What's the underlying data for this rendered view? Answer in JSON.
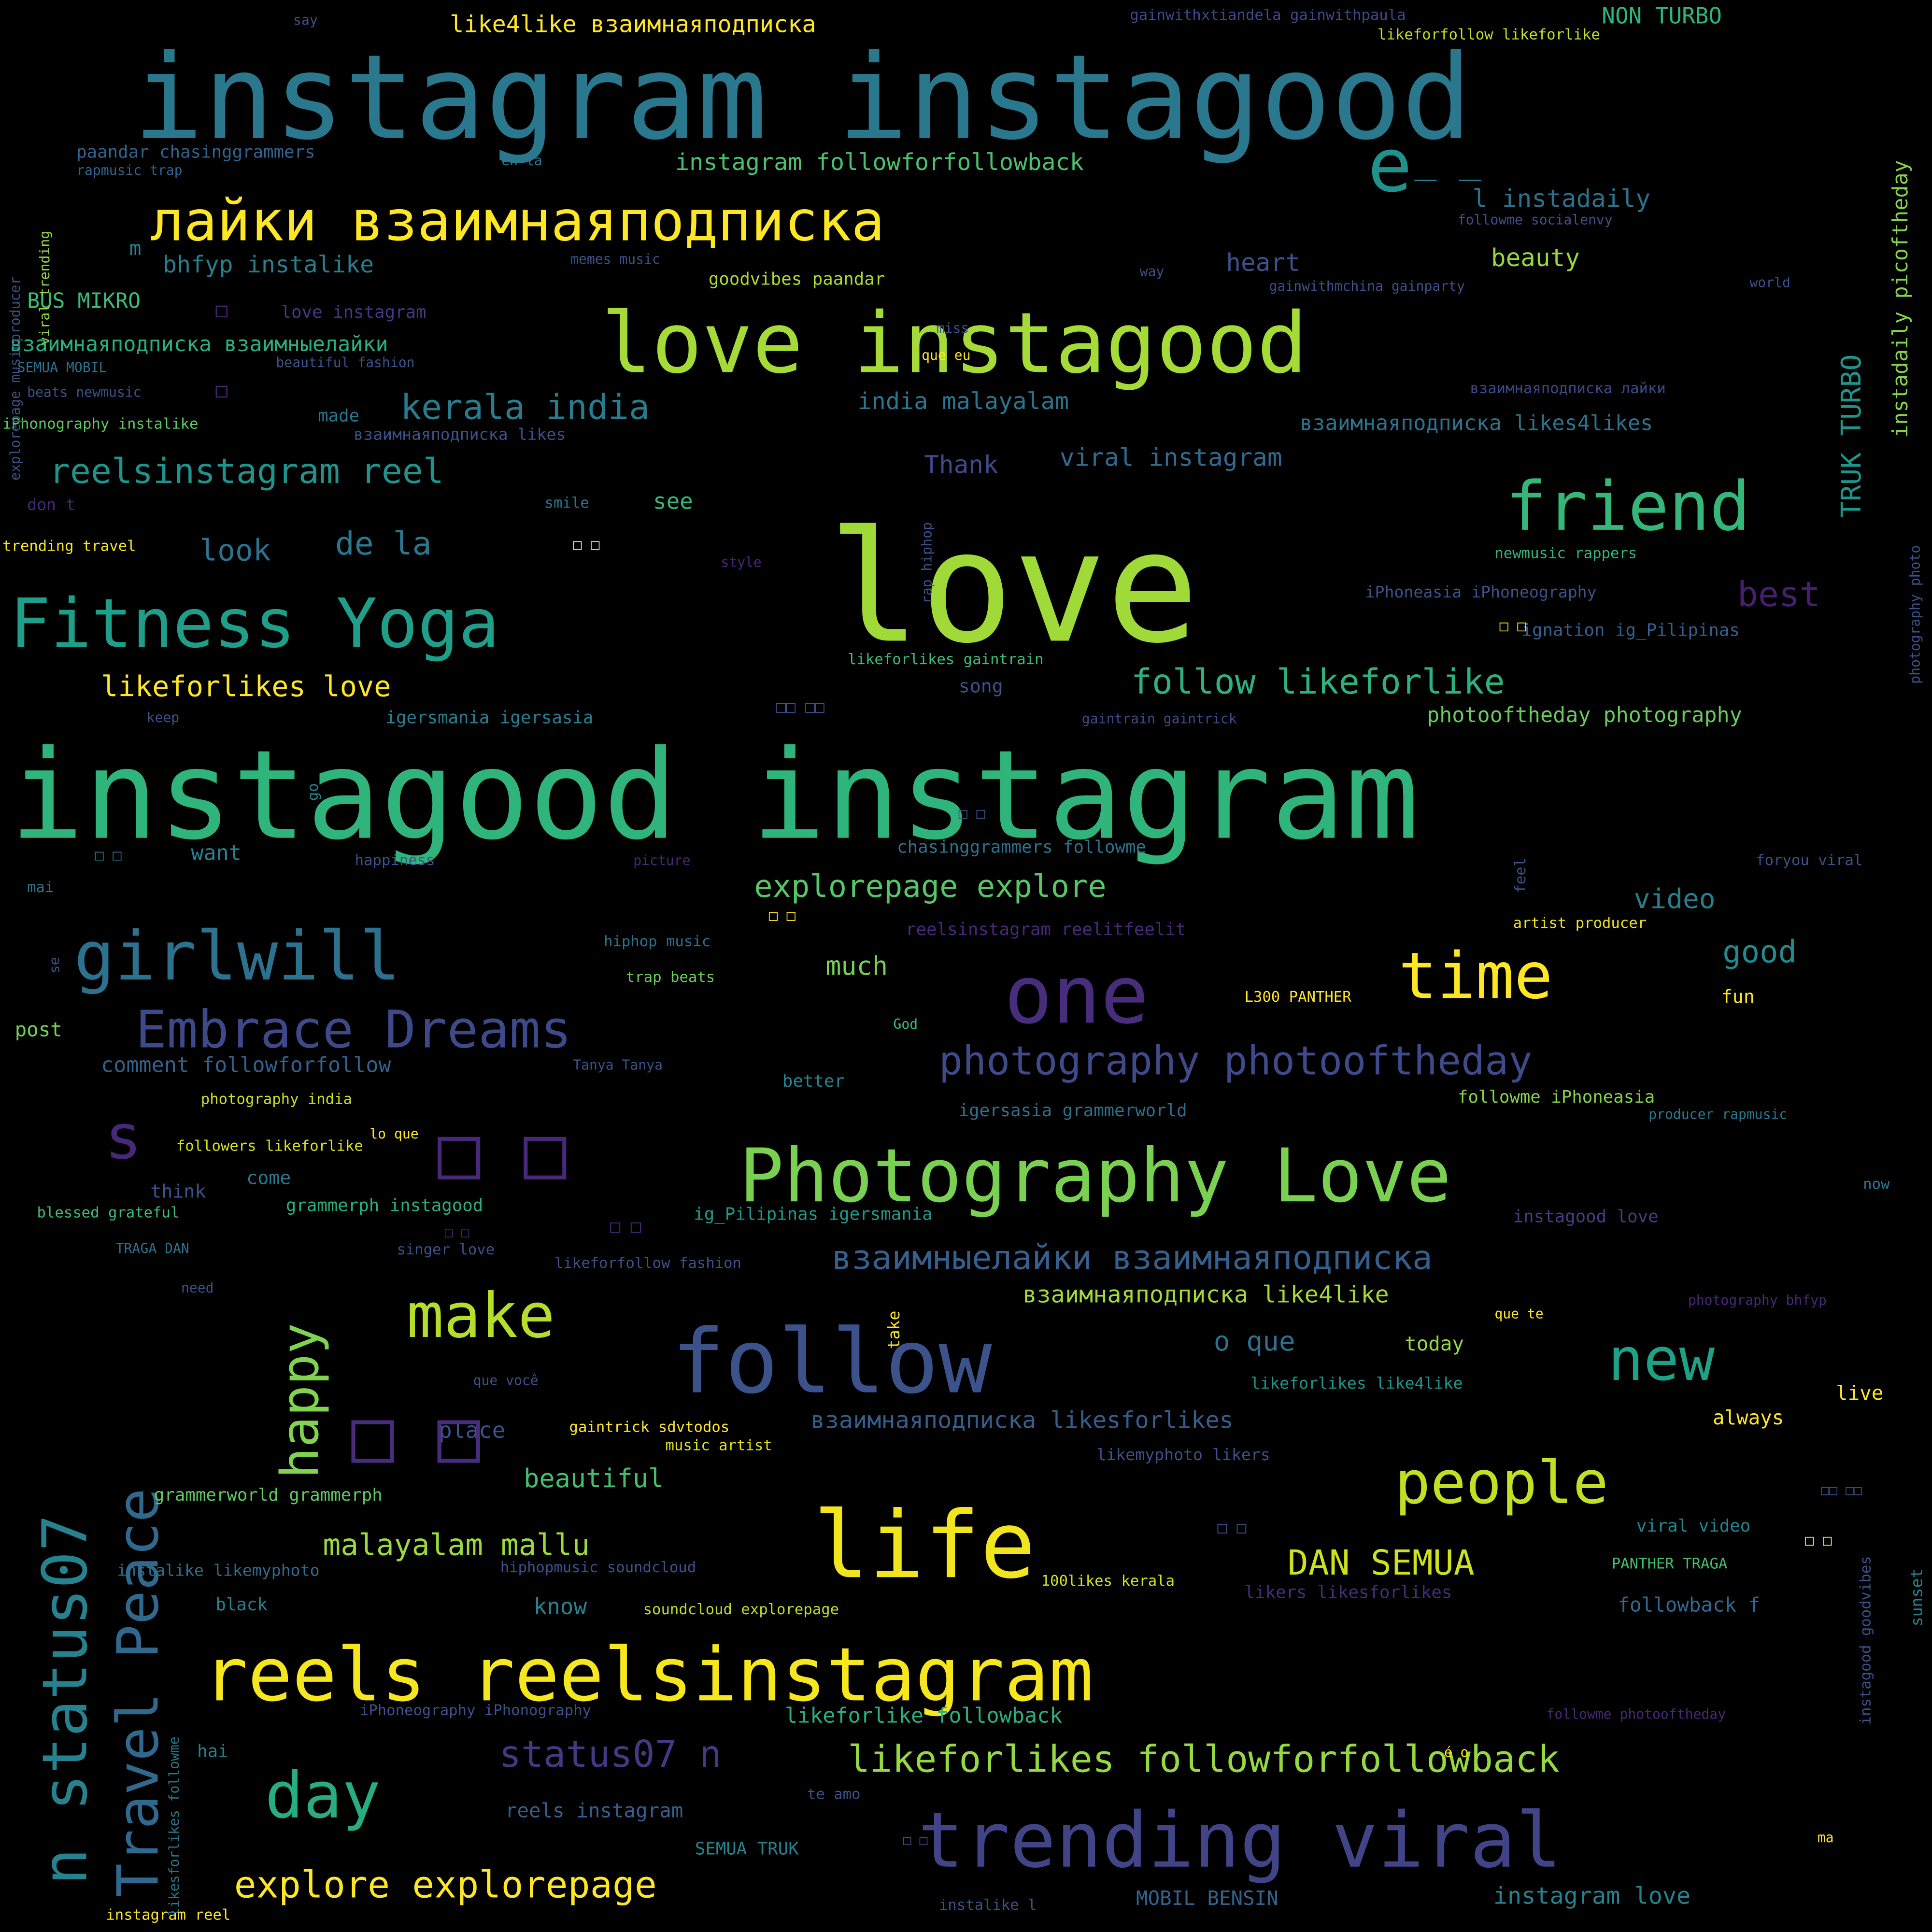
{
  "background": "#000000",
  "palette": [
    "#440154",
    "#3b528b",
    "#21918c",
    "#5ec962",
    "#fde725"
  ],
  "words": [
    {
      "text": "love",
      "size": 125,
      "color": "#a0da39"
    },
    {
      "text": "instagood instagram",
      "size": 100,
      "color": "#2fb47c"
    },
    {
      "text": "instagram instagood",
      "size": 95,
      "color": "#2a788e"
    },
    {
      "text": "love instagood",
      "size": 68,
      "color": "#a5db36"
    },
    {
      "text": "reels reelsinstagram",
      "size": 60,
      "color": "#f5e61e"
    },
    {
      "text": "life",
      "size": 75,
      "color": "#f1e51d"
    },
    {
      "text": "follow",
      "size": 72,
      "color": "#3b528b"
    },
    {
      "text": "Photography Love",
      "size": 60,
      "color": "#7ad151"
    },
    {
      "text": "trending viral",
      "size": 62,
      "color": "#414487"
    },
    {
      "text": "one",
      "size": 65,
      "color": "#472d7b"
    },
    {
      "text": "лайки взаимнаяподписка",
      "size": 45,
      "color": "#fde725"
    },
    {
      "text": "Fitness Yoga",
      "size": 55,
      "color": "#1f9e89"
    },
    {
      "text": "girlwill",
      "size": 55,
      "color": "#2c728e"
    },
    {
      "text": "friend",
      "size": 55,
      "color": "#35b779"
    },
    {
      "text": "time",
      "size": 52,
      "color": "#fde725"
    },
    {
      "text": "make",
      "size": 50,
      "color": "#b5de2b"
    },
    {
      "text": "day",
      "size": 52,
      "color": "#27ad81"
    },
    {
      "text": "people",
      "size": 48,
      "color": "#c2df23"
    },
    {
      "text": "new",
      "size": 48,
      "color": "#1fa187"
    },
    {
      "text": "n status07",
      "size": 50,
      "color": "#26828e"
    },
    {
      "text": "Embrace Dreams",
      "size": 42,
      "color": "#3e4989"
    },
    {
      "text": "photography photooftheday",
      "size": 32,
      "color": "#3e4a89"
    },
    {
      "text": "Travel Peace",
      "size": 46,
      "color": "#31688e"
    },
    {
      "text": "happy",
      "size": 42,
      "color": "#7fd34e"
    },
    {
      "text": "s",
      "size": 50,
      "color": "#482878"
    },
    {
      "text": "e",
      "size": 60,
      "color": "#21918c"
    },
    {
      "text": "explore explorepage",
      "size": 30,
      "color": "#fde725"
    },
    {
      "text": "likeforlikes followforfollowback",
      "size": 30,
      "color": "#95d840"
    },
    {
      "text": "status07 n",
      "size": 30,
      "color": "#443983"
    },
    {
      "text": "взаимныелайки взаимнаяподписка",
      "size": 27,
      "color": "#355f8d"
    },
    {
      "text": "reelsinstagram reel",
      "size": 28,
      "color": "#1f948c"
    },
    {
      "text": "kerala india",
      "size": 28,
      "color": "#287c8e"
    },
    {
      "text": "follow likeforlike",
      "size": 28,
      "color": "#2db27d"
    },
    {
      "text": "explorepage explore",
      "size": 25,
      "color": "#56c667"
    },
    {
      "text": "likeforlikes love",
      "size": 23,
      "color": "#fde725"
    },
    {
      "text": "malayalam mallu",
      "size": 24,
      "color": "#9bd93c"
    },
    {
      "text": "DAN SEMUA",
      "size": 28,
      "color": "#cde11d"
    },
    {
      "text": "de la",
      "size": 26,
      "color": "#2a778e"
    },
    {
      "text": "look",
      "size": 24,
      "color": "#2c728e"
    },
    {
      "text": "best",
      "size": 28,
      "color": "#481f70"
    },
    {
      "text": "good",
      "size": 25,
      "color": "#238a8d"
    },
    {
      "text": "video",
      "size": 22,
      "color": "#277f8e"
    },
    {
      "text": "much",
      "size": 21,
      "color": "#75d054"
    },
    {
      "text": "beautiful",
      "size": 21,
      "color": "#44bf70"
    },
    {
      "text": "o que",
      "size": 22,
      "color": "#2e6e8e"
    },
    {
      "text": "viral instagram",
      "size": 20,
      "color": "#306a8e"
    },
    {
      "text": "instagram followforfollowback",
      "size": 19,
      "color": "#4ac16d"
    },
    {
      "text": "like4like взаимнаяподписка",
      "size": 19,
      "color": "#fde725"
    },
    {
      "text": "india malayalam",
      "size": 19,
      "color": "#2a768e"
    },
    {
      "text": "bhfyp instalike",
      "size": 19,
      "color": "#277e8e"
    },
    {
      "text": "l instadaily",
      "size": 20,
      "color": "#2d708e"
    },
    {
      "text": "beauty",
      "size": 20,
      "color": "#95d840"
    },
    {
      "text": "heart",
      "size": 20,
      "color": "#3b528b"
    },
    {
      "text": "TRUK TURBO",
      "size": 22,
      "color": "#1f958b"
    },
    {
      "text": "instadaily picoftheday",
      "size": 17,
      "color": "#84d44b"
    },
    {
      "text": "взаимнаяподписка likes4likes",
      "size": 17,
      "color": "#2c738e"
    },
    {
      "text": "Thank",
      "size": 20,
      "color": "#3e4a89"
    },
    {
      "text": "see",
      "size": 18,
      "color": "#37b878"
    },
    {
      "text": "photooftheday photography",
      "size": 17,
      "color": "#67cc5c"
    },
    {
      "text": "взаимнаяподписка like4like",
      "size": 19,
      "color": "#a2da37"
    },
    {
      "text": "взаимнаяподписка likesforlikes",
      "size": 19,
      "color": "#355e8d"
    },
    {
      "text": "instagram love",
      "size": 19,
      "color": "#26828e"
    },
    {
      "text": "likeforlike followback",
      "size": 17,
      "color": "#2ab07f"
    },
    {
      "text": "comment followforfollow",
      "size": 17,
      "color": "#33628d"
    },
    {
      "text": "взаимнаяподписка взаимныелайки",
      "size": 17,
      "color": "#2ab07f"
    },
    {
      "text": "BUS MIKRO",
      "size": 17,
      "color": "#3dbc74"
    },
    {
      "text": "paandar chasinggrammers",
      "size": 14,
      "color": "#33638d"
    },
    {
      "text": "goodvibes paandar",
      "size": 14,
      "color": "#addc30"
    },
    {
      "text": "love instagram",
      "size": 14,
      "color": "#443983"
    },
    {
      "text": "chasinggrammers followme",
      "size": 14,
      "color": "#2c738e"
    },
    {
      "text": "igersmania igersasia",
      "size": 14,
      "color": "#287d8e"
    },
    {
      "text": "igersasia grammerworld",
      "size": 14,
      "color": "#2e6f8e"
    },
    {
      "text": "followme iPhoneasia",
      "size": 14,
      "color": "#84d44b"
    },
    {
      "text": "ig_Pilipinas igersmania",
      "size": 14,
      "color": "#1f998a"
    },
    {
      "text": "grammerph instagood",
      "size": 14,
      "color": "#2ab07f"
    },
    {
      "text": "grammerworld grammerph",
      "size": 14,
      "color": "#60ca60"
    },
    {
      "text": "instagood love",
      "size": 14,
      "color": "#433e85"
    },
    {
      "text": "likeforlikes like4like",
      "size": 13,
      "color": "#1f968b"
    },
    {
      "text": "viral video",
      "size": 14,
      "color": "#24868e"
    },
    {
      "text": "followback f",
      "size": 16,
      "color": "#31688e"
    },
    {
      "text": "reels instagram",
      "size": 16,
      "color": "#355f8d"
    },
    {
      "text": "instalike likemyphoto",
      "size": 13,
      "color": "#2f6c8e"
    },
    {
      "text": "ignation ig_Pilipinas",
      "size": 14,
      "color": "#34608d"
    },
    {
      "text": "reelsinstagram reelitfeelit",
      "size": 14,
      "color": "#482878"
    },
    {
      "text": "iPhoneasia iPhoneography",
      "size": 13,
      "color": "#3b528b"
    },
    {
      "text": "followers likeforlike",
      "size": 12,
      "color": "#d8e219"
    },
    {
      "text": "photography india",
      "size": 12,
      "color": "#d0e11c"
    },
    {
      "text": "trending travel",
      "size": 12,
      "color": "#f4e61e"
    },
    {
      "text": "iPhonography instalike",
      "size": 12,
      "color": "#5ec962"
    },
    {
      "text": "L300 PANTHER",
      "size": 12,
      "color": "#fde725"
    },
    {
      "text": "artist producer",
      "size": 12,
      "color": "#f1e51d"
    },
    {
      "text": "gaintrick sdvtodos",
      "size": 12,
      "color": "#fde725"
    },
    {
      "text": "music artist",
      "size": 12,
      "color": "#e2e418"
    },
    {
      "text": "soundcloud explorepage",
      "size": 12,
      "color": "#bddf26"
    },
    {
      "text": "100likes kerala",
      "size": 12,
      "color": "#d2e21b"
    },
    {
      "text": "PANTHER TRAGA",
      "size": 12,
      "color": "#44bf70"
    },
    {
      "text": "NON TURBO",
      "size": 18,
      "color": "#2fb47c"
    },
    {
      "text": "instagram reel",
      "size": 12,
      "color": "#fde725"
    },
    {
      "text": "MOBIL BENSIN",
      "size": 16,
      "color": "#33638d"
    },
    {
      "text": "SEMUA TRUK",
      "size": 14,
      "color": "#26828e"
    },
    {
      "text": "gainwithxtiandela gainwithpaula",
      "size": 12,
      "color": "#3e4989"
    },
    {
      "text": "likeforfollow likeforlike",
      "size": 12,
      "color": "#c2df23"
    },
    {
      "text": "followme socialenvy",
      "size": 11,
      "color": "#3b528b"
    },
    {
      "text": "gainwithmchina gainparty",
      "size": 11,
      "color": "#3b528b"
    },
    {
      "text": "взаимнаяподписка лайки",
      "size": 12,
      "color": "#3e4a89"
    },
    {
      "text": "newmusic rappers",
      "size": 12,
      "color": "#32b67a"
    },
    {
      "text": "gaintrain gaintrick",
      "size": 11,
      "color": "#3e4989"
    },
    {
      "text": "likeforlikes gaintrain",
      "size": 12,
      "color": "#3dbc74"
    },
    {
      "text": "взаимнаяподписка likes",
      "size": 13,
      "color": "#3b528b"
    },
    {
      "text": "beautiful fashion",
      "size": 11,
      "color": "#3b528b"
    },
    {
      "text": "beats newmusic",
      "size": 11,
      "color": "#3b528b"
    },
    {
      "text": "rapmusic trap",
      "size": 11,
      "color": "#33638d"
    },
    {
      "text": "memes music",
      "size": 11,
      "color": "#3b528b"
    },
    {
      "text": "SEMUA MOBIL",
      "size": 11,
      "color": "#2c728e"
    },
    {
      "text": "hiphop music",
      "size": 12,
      "color": "#2c728e"
    },
    {
      "text": "trap beats",
      "size": 12,
      "color": "#6ccd5a"
    },
    {
      "text": "hiphopmusic soundcloud",
      "size": 12,
      "color": "#3b528b"
    },
    {
      "text": "iPhoneography iPhonography",
      "size": 12,
      "color": "#3b528b"
    },
    {
      "text": "likeforfollow fashion",
      "size": 12,
      "color": "#3b528b"
    },
    {
      "text": "likemyphoto likers",
      "size": 13,
      "color": "#3b528b"
    },
    {
      "text": "likers likesforlikes",
      "size": 14,
      "color": "#472d7b"
    },
    {
      "text": "rappers hiphopmusic",
      "size": 11,
      "color": "#482878"
    },
    {
      "text": "instalike l",
      "size": 12,
      "color": "#3b528b"
    },
    {
      "text": "blessed grateful",
      "size": 12,
      "color": "#3dbc74"
    },
    {
      "text": "singer love",
      "size": 12,
      "color": "#3b528b"
    },
    {
      "text": "producer rapmusic",
      "size": 11,
      "color": "#2a788e"
    },
    {
      "text": "foryou viral",
      "size": 12,
      "color": "#3b528b"
    },
    {
      "text": "photography bhfyp",
      "size": 11,
      "color": "#482878"
    },
    {
      "text": "followme photooftheday",
      "size": 11,
      "color": "#482878"
    },
    {
      "text": "que você",
      "size": 11,
      "color": "#3b528b"
    },
    {
      "text": "Tanya Tanya",
      "size": 11,
      "color": "#3b528b"
    },
    {
      "text": "TRAGA DAN",
      "size": 11,
      "color": "#2c728e"
    },
    {
      "text": "lo que",
      "size": 11,
      "color": "#fde725"
    },
    {
      "text": "que eu",
      "size": 11,
      "color": "#fde725"
    },
    {
      "text": "en la",
      "size": 11,
      "color": "#2a788e"
    },
    {
      "text": "que te",
      "size": 11,
      "color": "#fde725"
    },
    {
      "text": "te amo",
      "size": 12,
      "color": "#3b528b"
    },
    {
      "text": "é o",
      "size": 11,
      "color": "#fde725"
    },
    {
      "text": "don t",
      "size": 13,
      "color": "#482878"
    },
    {
      "text": "place",
      "size": 18,
      "color": "#3b528b"
    },
    {
      "text": "know",
      "size": 18,
      "color": "#26828e"
    },
    {
      "text": "today",
      "size": 16,
      "color": "#95d840"
    },
    {
      "text": "always",
      "size": 16,
      "color": "#fde725"
    },
    {
      "text": "live",
      "size": 16,
      "color": "#fde725"
    },
    {
      "text": "fun",
      "size": 15,
      "color": "#fde725"
    },
    {
      "text": "better",
      "size": 14,
      "color": "#26828e"
    },
    {
      "text": "come",
      "size": 15,
      "color": "#2a788e"
    },
    {
      "text": "think",
      "size": 15,
      "color": "#3b528b"
    },
    {
      "text": "post",
      "size": 16,
      "color": "#75d054"
    },
    {
      "text": "want",
      "size": 17,
      "color": "#26828e"
    },
    {
      "text": "song",
      "size": 15,
      "color": "#3b528b"
    },
    {
      "text": "black",
      "size": 14,
      "color": "#26828e"
    },
    {
      "text": "hai",
      "size": 14,
      "color": "#26828e"
    },
    {
      "text": "mai",
      "size": 12,
      "color": "#2a788e"
    },
    {
      "text": "ma",
      "size": 11,
      "color": "#fde725"
    },
    {
      "text": "made",
      "size": 14,
      "color": "#2a788e"
    },
    {
      "text": "now",
      "size": 12,
      "color": "#2a788e"
    },
    {
      "text": "smile",
      "size": 12,
      "color": "#2a788e"
    },
    {
      "text": "style",
      "size": 11,
      "color": "#482878"
    },
    {
      "text": "picture",
      "size": 11,
      "color": "#482878"
    },
    {
      "text": "keep",
      "size": 11,
      "color": "#3b528b"
    },
    {
      "text": "happiness",
      "size": 12,
      "color": "#3b528b"
    },
    {
      "text": "God",
      "size": 11,
      "color": "#3dbc74"
    },
    {
      "text": "need",
      "size": 11,
      "color": "#3b528b"
    },
    {
      "text": "miss",
      "size": 11,
      "color": "#3b528b"
    },
    {
      "text": "way",
      "size": 11,
      "color": "#3b528b"
    },
    {
      "text": "world",
      "size": 11,
      "color": "#3b528b"
    },
    {
      "text": "say",
      "size": 11,
      "color": "#3b528b"
    },
    {
      "text": "m",
      "size": 16,
      "color": "#26828e"
    },
    {
      "text": "take",
      "size": 13,
      "color": "#fde725"
    },
    {
      "text": "go",
      "size": 12,
      "color": "#26828e"
    },
    {
      "text": "se",
      "size": 11,
      "color": "#3b528b"
    },
    {
      "text": "feel",
      "size": 12,
      "color": "#3b528b"
    },
    {
      "text": "rap hiphop",
      "size": 11,
      "color": "#3b528b"
    },
    {
      "text": "sunset",
      "size": 13,
      "color": "#26828e"
    },
    {
      "text": "instagood goodvibes",
      "size": 12,
      "color": "#3b528b"
    },
    {
      "text": "photography photo",
      "size": 11,
      "color": "#3b528b"
    },
    {
      "text": "likesforlikes followme",
      "size": 11,
      "color": "#2a788e"
    },
    {
      "text": "explorepage musicproducer",
      "size": 11,
      "color": "#3b528b"
    },
    {
      "text": "viral trending",
      "size": 11,
      "color": "#95d840"
    },
    {
      "text": "□ □",
      "size": 58,
      "color": "#482878"
    },
    {
      "text": "□ □",
      "size": 58,
      "color": "#472d7b"
    },
    {
      "text": "□",
      "size": 16,
      "color": "#482878"
    },
    {
      "text": "□",
      "size": 16,
      "color": "#482878"
    },
    {
      "text": "□ □",
      "size": 12,
      "color": "#fde725"
    },
    {
      "text": "□ □",
      "size": 14,
      "color": "#482878"
    },
    {
      "text": "□ □",
      "size": 12,
      "color": "#fde725"
    },
    {
      "text": "□□ □□",
      "size": 13,
      "color": "#3b528b"
    },
    {
      "text": "□ □",
      "size": 12,
      "color": "#fde725"
    },
    {
      "text": "□ □",
      "size": 12,
      "color": "#3b528b"
    },
    {
      "text": "□ □",
      "size": 13,
      "color": "#3b528b"
    },
    {
      "text": "□ □",
      "size": 12,
      "color": "#fde725"
    },
    {
      "text": "□ □",
      "size": 12,
      "color": "#2a788e"
    },
    {
      "text": "□ □",
      "size": 11,
      "color": "#3b528b"
    },
    {
      "text": "□ □",
      "size": 11,
      "color": "#482878"
    },
    {
      "text": "□□ □□",
      "size": 11,
      "color": "#3b528b"
    },
    {
      "text": "_ _",
      "size": 30,
      "color": "#26828e"
    }
  ]
}
